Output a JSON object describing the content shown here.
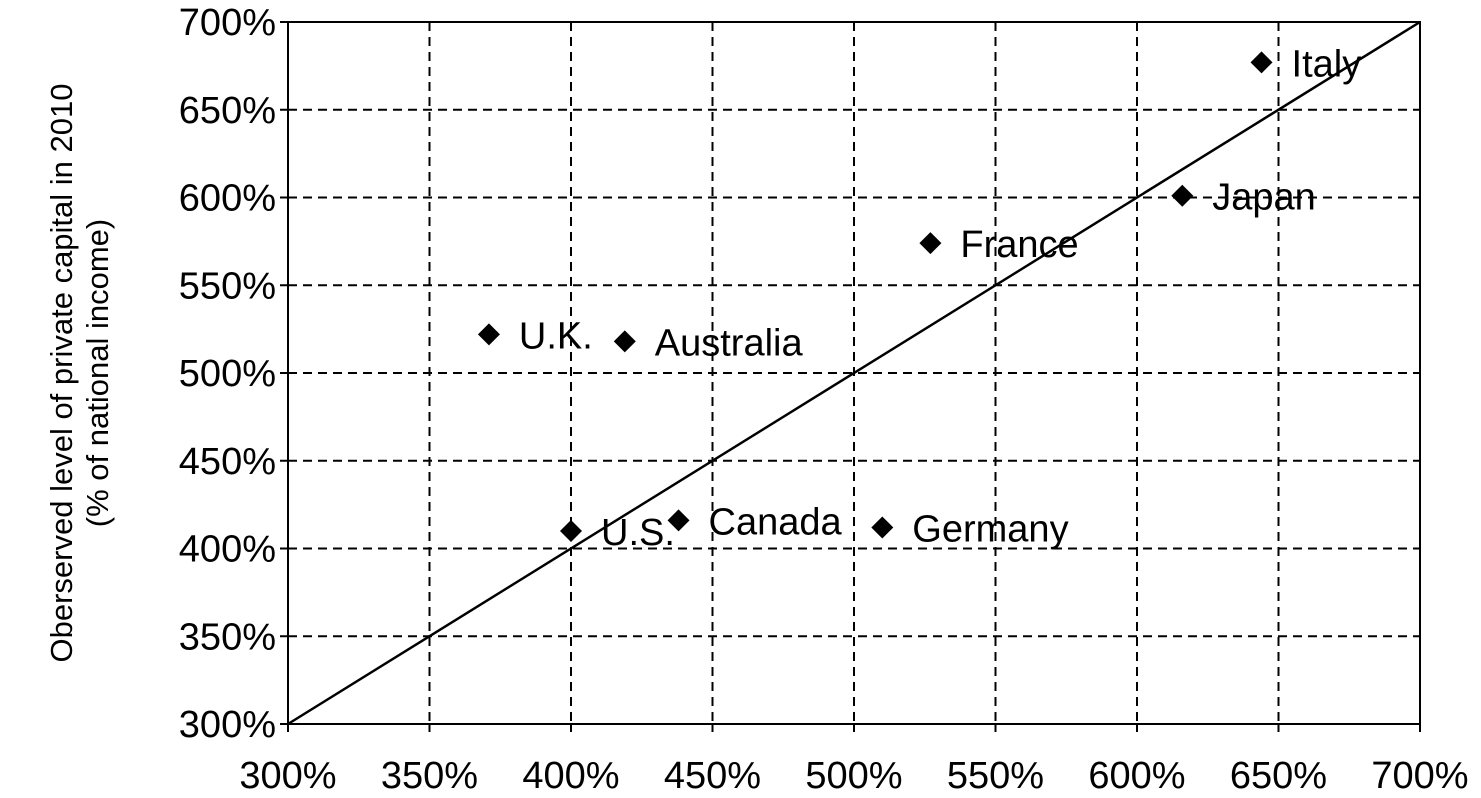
{
  "chart_data": {
    "type": "scatter",
    "title": "",
    "xlabel": "",
    "ylabel": [
      "Oberserved level of private capital in 2010",
      "(% of national income)"
    ],
    "xlim": [
      300,
      700
    ],
    "ylim": [
      300,
      700
    ],
    "x_ticks": [
      300,
      350,
      400,
      450,
      500,
      550,
      600,
      650,
      700
    ],
    "y_ticks": [
      300,
      350,
      400,
      450,
      500,
      550,
      600,
      650,
      700
    ],
    "x_tick_labels": [
      "300%",
      "350%",
      "400%",
      "450%",
      "500%",
      "550%",
      "600%",
      "650%",
      "700%"
    ],
    "y_tick_labels": [
      "300%",
      "350%",
      "400%",
      "450%",
      "500%",
      "550%",
      "600%",
      "650%",
      "700%"
    ],
    "grid": true,
    "legend": "none",
    "reference_line": {
      "from": [
        300,
        300
      ],
      "to": [
        700,
        700
      ]
    },
    "points": [
      {
        "label": "Italy",
        "x": 644,
        "y": 677
      },
      {
        "label": "Japan",
        "x": 616,
        "y": 601
      },
      {
        "label": "France",
        "x": 527,
        "y": 574
      },
      {
        "label": "U.K.",
        "x": 371,
        "y": 522
      },
      {
        "label": "Australia",
        "x": 419,
        "y": 518
      },
      {
        "label": "U.S.",
        "x": 400,
        "y": 410
      },
      {
        "label": "Canada",
        "x": 438,
        "y": 416
      },
      {
        "label": "Germany",
        "x": 510,
        "y": 412
      }
    ],
    "colors": {
      "marker": "#000000",
      "grid": "#000000",
      "line": "#000000",
      "background": "#ffffff"
    }
  }
}
